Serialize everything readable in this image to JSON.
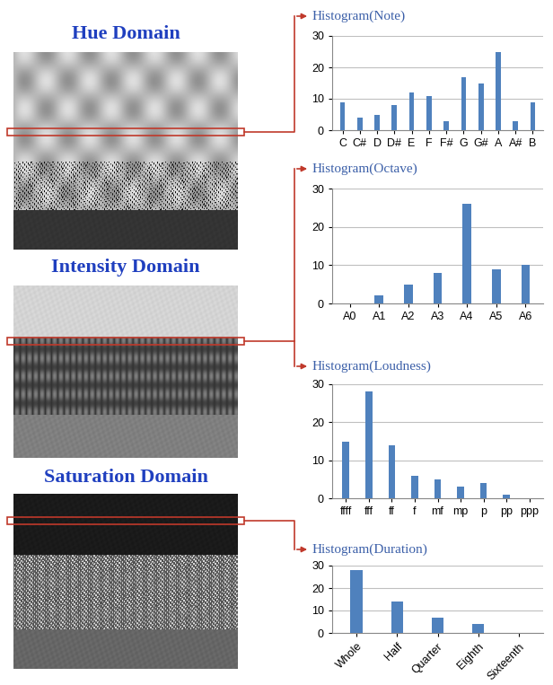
{
  "panels": [
    {
      "title": "Hue Domain"
    },
    {
      "title": "Intensity Domain"
    },
    {
      "title": "Saturation Domain"
    }
  ],
  "chart_data": [
    {
      "type": "bar",
      "title": "Histogram(Note)",
      "categories": [
        "C",
        "C#",
        "D",
        "D#",
        "E",
        "F",
        "F#",
        "G",
        "G#",
        "A",
        "A#",
        "B"
      ],
      "values": [
        9,
        4,
        5,
        8,
        12,
        11,
        3,
        17,
        15,
        25,
        3,
        9
      ],
      "color": "#4f81bd",
      "ylim": [
        0,
        30
      ],
      "yticks": [
        0,
        10,
        20,
        30
      ],
      "grid": true
    },
    {
      "type": "bar",
      "title": "Histogram(Octave)",
      "categories": [
        "A0",
        "A1",
        "A2",
        "A3",
        "A4",
        "A5",
        "A6"
      ],
      "values": [
        0,
        2,
        5,
        8,
        26,
        9,
        10
      ],
      "color": "#4f81bd",
      "ylim": [
        0,
        30
      ],
      "yticks": [
        0,
        10,
        20,
        30
      ],
      "grid": true
    },
    {
      "type": "bar",
      "title": "Histogram(Loudness)",
      "categories": [
        "ffff",
        "fff",
        "ff",
        "f",
        "mf",
        "mp",
        "p",
        "pp",
        "ppp"
      ],
      "values": [
        15,
        28,
        14,
        6,
        5,
        3,
        4,
        1,
        0
      ],
      "color": "#4f81bd",
      "ylim": [
        0,
        30
      ],
      "yticks": [
        0,
        10,
        20,
        30
      ],
      "grid": true
    },
    {
      "type": "bar",
      "title": "Histogram(Duration)",
      "categories": [
        "Whole",
        "Half",
        "Quarter",
        "Eighth",
        "Sixteenth"
      ],
      "values": [
        28,
        14,
        7,
        4,
        0
      ],
      "color": "#4f81bd",
      "ylim": [
        0,
        30
      ],
      "yticks": [
        0,
        10,
        20,
        30
      ],
      "grid": true
    }
  ]
}
